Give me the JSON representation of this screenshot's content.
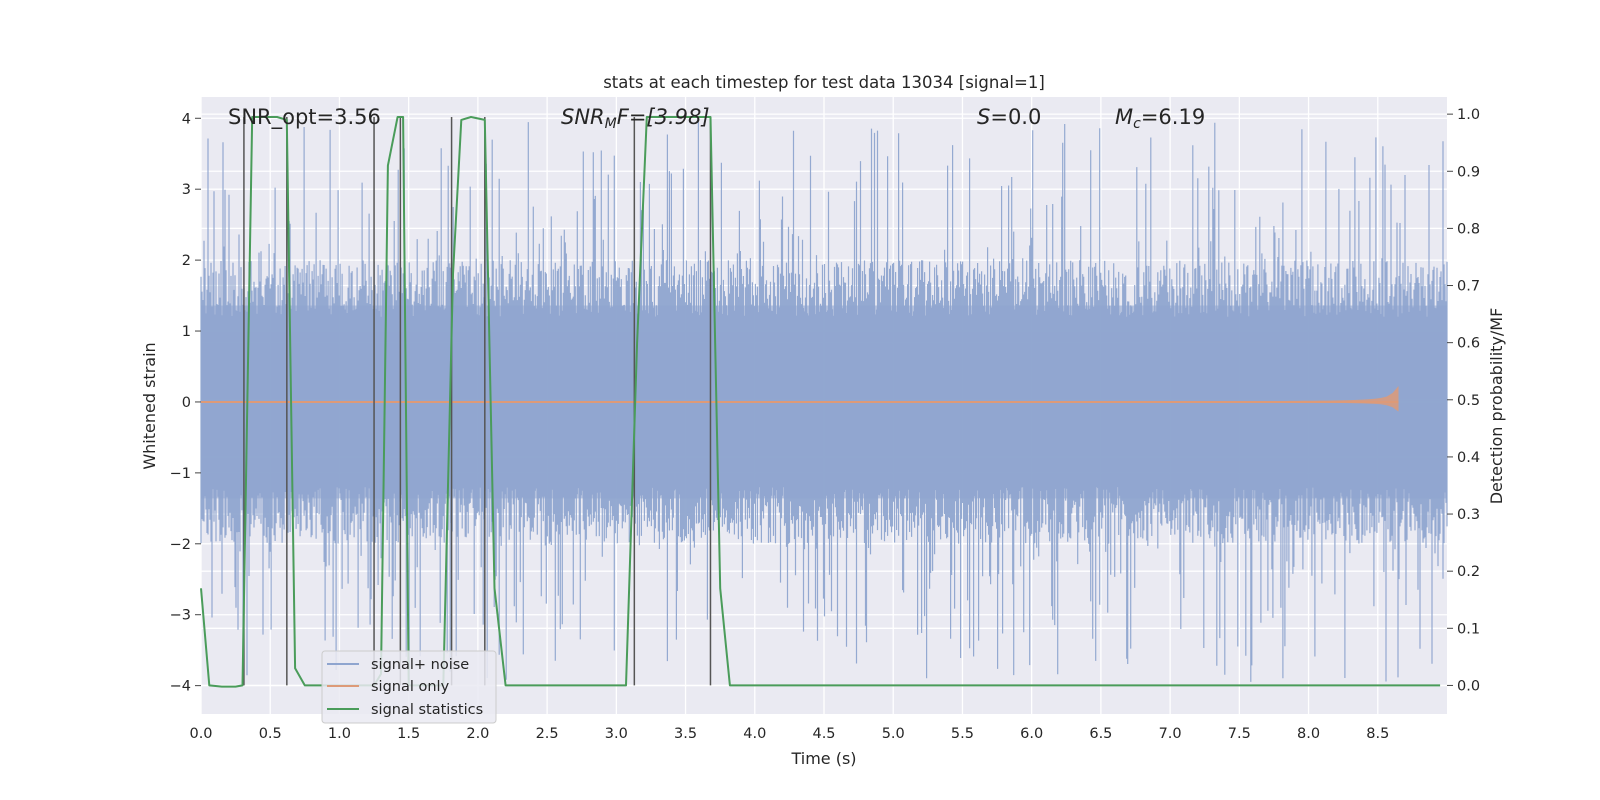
{
  "chart_data": {
    "type": "line",
    "title": "stats at each timestep for test data 13034 [signal=1]",
    "xlabel": "Time (s)",
    "ylabel_left": "Whitened strain",
    "ylabel_right": "Detection probability/MF",
    "xlim": [
      0.0,
      9.0
    ],
    "ylim_left": [
      -4.4,
      4.3
    ],
    "ylim_right": [
      -0.05,
      1.03
    ],
    "x_ticks": [
      "0.0",
      "0.5",
      "1.0",
      "1.5",
      "2.0",
      "2.5",
      "3.0",
      "3.5",
      "4.0",
      "4.5",
      "5.0",
      "5.5",
      "6.0",
      "6.5",
      "7.0",
      "7.5",
      "8.0",
      "8.5"
    ],
    "y_ticks_left": [
      "4",
      "3",
      "2",
      "1",
      "0",
      "−1",
      "−2",
      "−3",
      "−4"
    ],
    "y_ticks_right": [
      "1.0",
      "0.9",
      "0.8",
      "0.7",
      "0.6",
      "0.5",
      "0.4",
      "0.3",
      "0.2",
      "0.1",
      "0.0"
    ],
    "grid": true,
    "legend_position": "lower-left",
    "annotations": {
      "snr_opt": "SNR_opt=3.56",
      "snr_mf_prefix": "SNR",
      "snr_mf_sub": "M",
      "snr_mf_suffix": "F=[3.98]",
      "s_prefix": "S",
      "s_suffix": "=0.0",
      "mc_prefix": "M",
      "mc_sub": "c",
      "mc_suffix": "=6.19"
    },
    "series": [
      {
        "name": "signal+ noise",
        "color": "#8fa5cf",
        "axis": "left",
        "description_values": "noise band approximately between -1.6 and 1.6 with spikes up to about ±3.9",
        "envelope": {
          "typical_abs": 1.6,
          "spike_max": 3.95
        }
      },
      {
        "name": "signal only",
        "color": "#dd9a78",
        "axis": "left",
        "chirp_end_x": 8.65,
        "chirp_peak_amplitude": 0.55
      },
      {
        "name": "signal statistics",
        "color": "#4a9c5a",
        "axis": "right",
        "x": [
          0.0,
          0.06,
          0.15,
          0.25,
          0.3,
          0.37,
          0.45,
          0.55,
          0.62,
          0.68,
          0.75,
          1.0,
          1.25,
          1.3,
          1.35,
          1.42,
          1.46,
          1.5,
          1.62,
          1.75,
          1.82,
          1.88,
          1.95,
          2.05,
          2.12,
          2.2,
          2.4,
          3.0,
          3.07,
          3.15,
          3.22,
          3.5,
          3.68,
          3.75,
          3.82,
          4.0,
          5.0,
          6.0,
          7.0,
          8.0,
          8.95
        ],
        "y": [
          0.17,
          0.0,
          -0.002,
          -0.002,
          0.0,
          0.995,
          0.995,
          0.995,
          0.99,
          0.03,
          0.0,
          0.0,
          0.0,
          0.02,
          0.91,
          0.995,
          0.995,
          0.0,
          0.0,
          0.0,
          0.72,
          0.99,
          0.995,
          0.99,
          0.17,
          0.0,
          0.0,
          0.0,
          0.0,
          0.6,
          0.995,
          0.995,
          0.995,
          0.17,
          0.0,
          0.0,
          0.0,
          0.0,
          0.0,
          0.0,
          0.0
        ]
      }
    ],
    "vertical_lines": {
      "color": "#555555",
      "x": [
        0.31,
        0.62,
        1.25,
        1.44,
        1.81,
        2.05,
        3.13,
        3.68
      ]
    }
  }
}
